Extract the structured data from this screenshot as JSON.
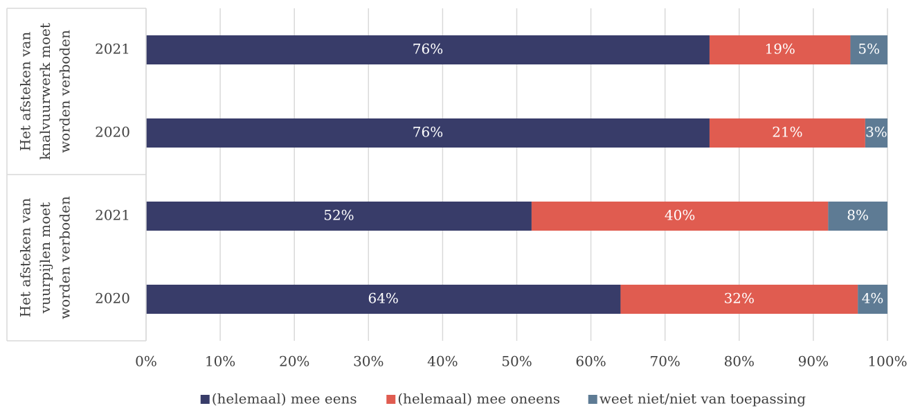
{
  "chart_data": {
    "type": "stacked_barh",
    "groups": [
      {
        "label_lines": [
          "Het afsteken van",
          "knalvuurwerk moet",
          "worden verboden"
        ],
        "categories": [
          "2021",
          "2020"
        ]
      },
      {
        "label_lines": [
          "Het afsteken van",
          "vuurpijlen moet",
          "worden verboden"
        ],
        "categories": [
          "2021",
          "2020"
        ]
      }
    ],
    "series": [
      {
        "name": "(helemaal) mee eens",
        "color": "#383c69",
        "values": [
          76,
          76,
          52,
          64
        ],
        "value_labels": [
          "76%",
          "76%",
          "52%",
          "64%"
        ]
      },
      {
        "name": "(helemaal) mee oneens",
        "color": "#e05c50",
        "values": [
          19,
          21,
          40,
          32
        ],
        "value_labels": [
          "19%",
          "21%",
          "40%",
          "32%"
        ]
      },
      {
        "name": "weet niet/niet van toepassing",
        "color": "#5e7b94",
        "values": [
          5,
          3,
          8,
          4
        ],
        "value_labels": [
          "5%",
          "3%",
          "8%",
          "4%"
        ]
      }
    ],
    "xlim": [
      0,
      100
    ],
    "xticks": [
      {
        "value": 0,
        "label": "0%"
      },
      {
        "value": 10,
        "label": "10%"
      },
      {
        "value": 20,
        "label": "20%"
      },
      {
        "value": 30,
        "label": "30%"
      },
      {
        "value": 40,
        "label": "40%"
      },
      {
        "value": 50,
        "label": "50%"
      },
      {
        "value": 60,
        "label": "60%"
      },
      {
        "value": 70,
        "label": "70%"
      },
      {
        "value": 80,
        "label": "80%"
      },
      {
        "value": 90,
        "label": "90%"
      },
      {
        "value": 100,
        "label": "100%"
      }
    ],
    "grid": true,
    "legend": "bottom"
  }
}
